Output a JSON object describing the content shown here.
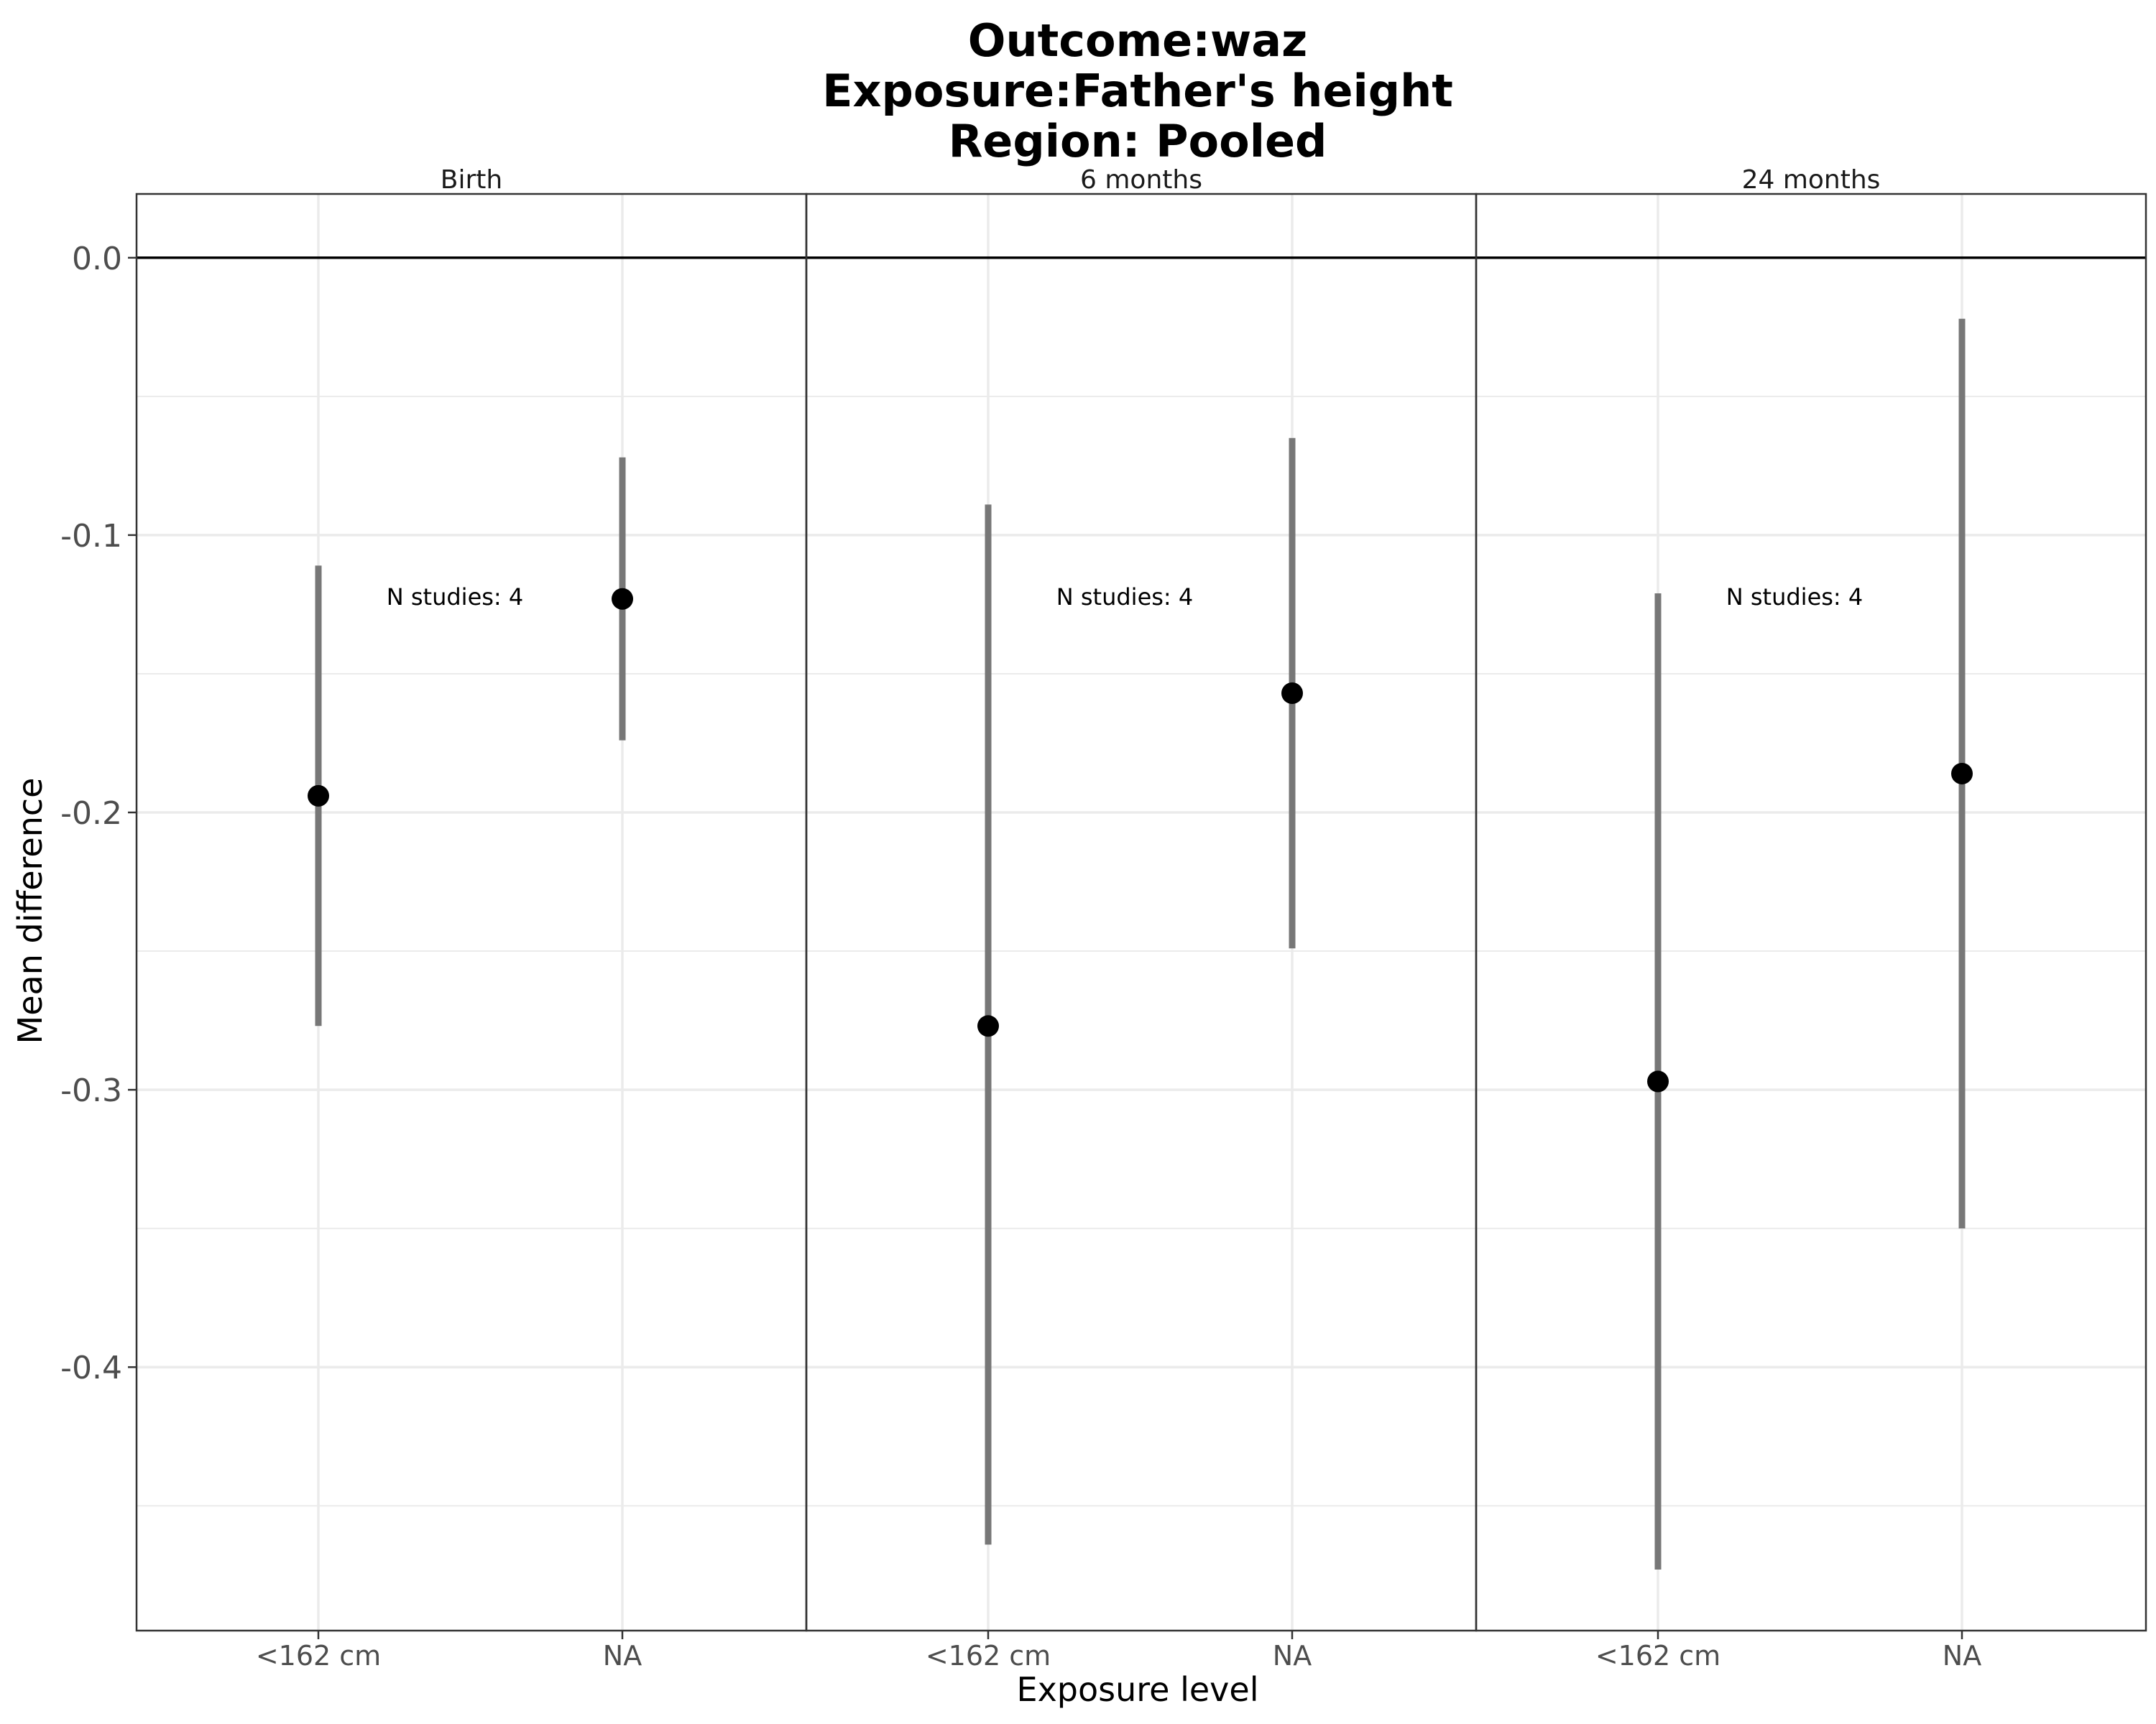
{
  "chart_data": {
    "type": "scatter",
    "title": [
      "Outcome:waz",
      "Exposure:Father's height",
      "Region: Pooled"
    ],
    "xlabel": "Exposure level",
    "ylabel": "Mean difference",
    "categories": [
      "<162 cm",
      "NA"
    ],
    "ylim": [
      -0.495,
      0.023
    ],
    "y_ticks": [
      0.0,
      -0.1,
      -0.2,
      -0.3,
      -0.4
    ],
    "y_tick_labels": [
      "0.0",
      "-0.1",
      "-0.2",
      "-0.3",
      "-0.4"
    ],
    "reference_line": 0.0,
    "grid": true,
    "panels": [
      {
        "label": "Birth",
        "annotation": "N studies: 4",
        "points": [
          {
            "x": "<162 cm",
            "estimate": -0.194,
            "lower": -0.277,
            "upper": -0.111
          },
          {
            "x": "NA",
            "estimate": -0.123,
            "lower": -0.174,
            "upper": -0.072
          }
        ]
      },
      {
        "label": "6 months",
        "annotation": "N studies: 4",
        "points": [
          {
            "x": "<162 cm",
            "estimate": -0.277,
            "lower": -0.464,
            "upper": -0.089
          },
          {
            "x": "NA",
            "estimate": -0.157,
            "lower": -0.249,
            "upper": -0.065
          }
        ]
      },
      {
        "label": "24 months",
        "annotation": "N studies: 4",
        "points": [
          {
            "x": "<162 cm",
            "estimate": -0.297,
            "lower": -0.473,
            "upper": -0.121
          },
          {
            "x": "NA",
            "estimate": -0.186,
            "lower": -0.35,
            "upper": -0.022
          }
        ]
      }
    ],
    "colors": {
      "point": "#000000",
      "errorbar": "#777777",
      "panel_border": "#333333",
      "grid": "#ebebeb",
      "reference": "#000000"
    }
  }
}
